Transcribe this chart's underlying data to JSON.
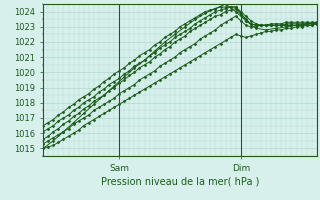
{
  "title": "Pression niveau de la mer( hPa )",
  "ylabel_values": [
    1015,
    1016,
    1017,
    1018,
    1019,
    1020,
    1021,
    1022,
    1023,
    1024
  ],
  "ylim": [
    1014.5,
    1024.5
  ],
  "xlim": [
    0,
    54
  ],
  "background_color": "#d8f0ec",
  "plot_bg_color": "#d8f0ec",
  "grid_color": "#b0d8d0",
  "line_color": "#1a5c1a",
  "tick_color": "#1a5c1a",
  "title_color": "#1a5c1a",
  "sam_x": 15,
  "dim_x": 39,
  "lines": [
    {
      "x": [
        0,
        1,
        2,
        3,
        4,
        5,
        6,
        7,
        8,
        9,
        10,
        11,
        12,
        13,
        14,
        15,
        16,
        17,
        18,
        19,
        20,
        21,
        22,
        23,
        24,
        25,
        26,
        27,
        28,
        29,
        30,
        31,
        32,
        33,
        34,
        35,
        36,
        37,
        38,
        39,
        40,
        41,
        42,
        43,
        44,
        45,
        46,
        47,
        48,
        49,
        50,
        51,
        52,
        53,
        54
      ],
      "y": [
        1015.0,
        1015.1,
        1015.2,
        1015.4,
        1015.6,
        1015.8,
        1016.0,
        1016.2,
        1016.5,
        1016.7,
        1016.9,
        1017.1,
        1017.3,
        1017.5,
        1017.7,
        1017.9,
        1018.1,
        1018.3,
        1018.5,
        1018.7,
        1018.9,
        1019.1,
        1019.3,
        1019.5,
        1019.7,
        1019.9,
        1020.1,
        1020.3,
        1020.5,
        1020.7,
        1020.9,
        1021.1,
        1021.3,
        1021.5,
        1021.7,
        1021.9,
        1022.1,
        1022.3,
        1022.5,
        1022.4,
        1022.3,
        1022.4,
        1022.5,
        1022.6,
        1022.7,
        1022.7,
        1022.8,
        1022.8,
        1022.9,
        1022.9,
        1023.0,
        1023.0,
        1023.1,
        1023.1,
        1023.2
      ]
    },
    {
      "x": [
        0,
        1,
        2,
        3,
        4,
        5,
        6,
        7,
        8,
        9,
        10,
        11,
        12,
        13,
        14,
        15,
        16,
        17,
        18,
        19,
        20,
        21,
        22,
        23,
        24,
        25,
        26,
        27,
        28,
        29,
        30,
        31,
        32,
        33,
        34,
        35,
        36,
        37,
        38,
        39,
        40,
        41,
        42,
        43,
        44,
        45,
        46,
        47,
        48,
        49,
        50,
        51,
        52,
        53,
        54
      ],
      "y": [
        1015.3,
        1015.5,
        1015.7,
        1015.9,
        1016.1,
        1016.3,
        1016.6,
        1016.8,
        1017.0,
        1017.2,
        1017.5,
        1017.7,
        1017.9,
        1018.1,
        1018.3,
        1018.6,
        1018.8,
        1019.0,
        1019.2,
        1019.5,
        1019.7,
        1019.9,
        1020.1,
        1020.4,
        1020.6,
        1020.8,
        1021.0,
        1021.3,
        1021.5,
        1021.7,
        1021.9,
        1022.2,
        1022.4,
        1022.6,
        1022.8,
        1023.1,
        1023.3,
        1023.5,
        1023.7,
        1023.4,
        1023.1,
        1023.0,
        1023.0,
        1023.1,
        1023.1,
        1023.2,
        1023.2,
        1023.2,
        1023.3,
        1023.3,
        1023.3,
        1023.3,
        1023.3,
        1023.3,
        1023.3
      ]
    },
    {
      "x": [
        0,
        1,
        2,
        3,
        4,
        5,
        6,
        7,
        8,
        9,
        10,
        11,
        12,
        13,
        14,
        15,
        16,
        17,
        18,
        19,
        20,
        21,
        22,
        23,
        24,
        25,
        26,
        27,
        28,
        29,
        30,
        31,
        32,
        33,
        34,
        35,
        36,
        37,
        38,
        39,
        40,
        41,
        42,
        43,
        44,
        45,
        46,
        47,
        48,
        49,
        50,
        51,
        52,
        53,
        54
      ],
      "y": [
        1015.6,
        1015.8,
        1016.1,
        1016.3,
        1016.6,
        1016.8,
        1017.1,
        1017.3,
        1017.6,
        1017.8,
        1018.1,
        1018.3,
        1018.5,
        1018.8,
        1019.0,
        1019.3,
        1019.5,
        1019.8,
        1020.0,
        1020.3,
        1020.5,
        1020.7,
        1021.0,
        1021.2,
        1021.5,
        1021.7,
        1022.0,
        1022.2,
        1022.4,
        1022.7,
        1022.9,
        1023.1,
        1023.3,
        1023.5,
        1023.7,
        1023.8,
        1024.0,
        1024.1,
        1024.2,
        1023.8,
        1023.4,
        1023.2,
        1023.1,
        1023.1,
        1023.1,
        1023.1,
        1023.1,
        1023.1,
        1023.2,
        1023.2,
        1023.2,
        1023.2,
        1023.2,
        1023.2,
        1023.2
      ]
    },
    {
      "x": [
        0,
        1,
        2,
        3,
        4,
        5,
        6,
        7,
        8,
        9,
        10,
        11,
        12,
        13,
        14,
        15,
        16,
        17,
        18,
        19,
        20,
        21,
        22,
        23,
        24,
        25,
        26,
        27,
        28,
        29,
        30,
        31,
        32,
        33,
        34,
        35,
        36,
        37,
        38,
        39,
        40,
        41,
        42,
        43,
        44,
        45,
        46,
        47,
        48,
        49,
        50,
        51,
        52,
        53,
        54
      ],
      "y": [
        1016.1,
        1016.3,
        1016.5,
        1016.8,
        1017.0,
        1017.2,
        1017.5,
        1017.7,
        1018.0,
        1018.2,
        1018.4,
        1018.7,
        1018.9,
        1019.2,
        1019.4,
        1019.6,
        1019.9,
        1020.1,
        1020.4,
        1020.6,
        1020.8,
        1021.1,
        1021.3,
        1021.6,
        1021.8,
        1022.0,
        1022.3,
        1022.5,
        1022.7,
        1022.9,
        1023.2,
        1023.4,
        1023.6,
        1023.8,
        1024.0,
        1024.1,
        1024.2,
        1024.3,
        1024.3,
        1023.9,
        1023.5,
        1023.2,
        1023.1,
        1023.1,
        1023.1,
        1023.1,
        1023.1,
        1023.1,
        1023.1,
        1023.1,
        1023.1,
        1023.1,
        1023.2,
        1023.2,
        1023.2
      ]
    },
    {
      "x": [
        0,
        1,
        2,
        3,
        4,
        5,
        6,
        7,
        8,
        9,
        10,
        11,
        12,
        13,
        14,
        15,
        16,
        17,
        18,
        19,
        20,
        21,
        22,
        23,
        24,
        25,
        26,
        27,
        28,
        29,
        30,
        31,
        32,
        33,
        34,
        35,
        36,
        37,
        38,
        39,
        40,
        41,
        42,
        43,
        44,
        45,
        46,
        47,
        48,
        49,
        50,
        51,
        52,
        53,
        54
      ],
      "y": [
        1016.5,
        1016.7,
        1016.9,
        1017.2,
        1017.4,
        1017.7,
        1017.9,
        1018.2,
        1018.4,
        1018.6,
        1018.9,
        1019.1,
        1019.4,
        1019.6,
        1019.9,
        1020.1,
        1020.3,
        1020.6,
        1020.8,
        1021.1,
        1021.3,
        1021.5,
        1021.8,
        1022.0,
        1022.3,
        1022.5,
        1022.7,
        1023.0,
        1023.2,
        1023.4,
        1023.6,
        1023.8,
        1024.0,
        1024.1,
        1024.2,
        1024.3,
        1024.3,
        1024.3,
        1024.3,
        1024.0,
        1023.7,
        1023.4,
        1023.2,
        1023.1,
        1023.1,
        1023.1,
        1023.1,
        1023.1,
        1023.1,
        1023.1,
        1023.1,
        1023.1,
        1023.1,
        1023.1,
        1023.2
      ]
    },
    {
      "x": [
        0,
        2,
        4,
        6,
        8,
        10,
        12,
        14,
        16,
        18,
        20,
        22,
        24,
        26,
        28,
        30,
        32,
        34,
        36,
        38,
        40,
        42,
        44,
        46,
        48,
        50,
        52,
        54
      ],
      "y": [
        1015.0,
        1015.5,
        1016.1,
        1016.7,
        1017.3,
        1017.9,
        1018.5,
        1019.1,
        1019.7,
        1020.3,
        1020.8,
        1021.4,
        1022.0,
        1022.5,
        1023.0,
        1023.5,
        1023.9,
        1024.2,
        1024.5,
        1024.0,
        1023.4,
        1022.9,
        1022.8,
        1022.9,
        1023.0,
        1023.1,
        1023.2,
        1023.3
      ]
    }
  ]
}
